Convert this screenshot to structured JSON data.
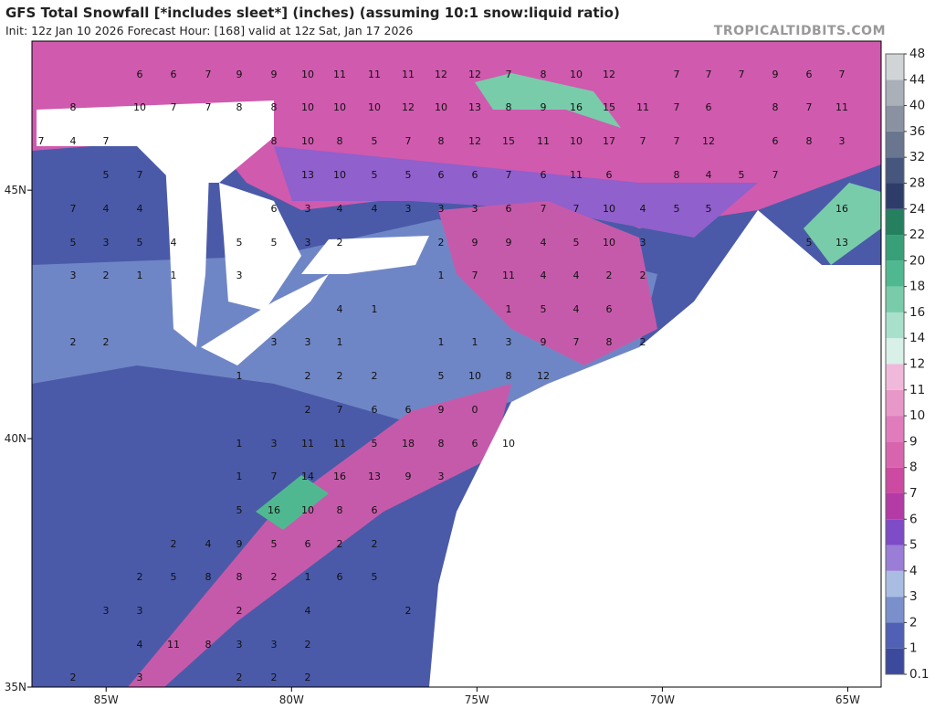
{
  "header": {
    "title": "GFS Total Snowfall [*includes sleet*] (inches) (assuming 10:1 snow:liquid ratio)",
    "subtitle": "Init: 12z Jan 10 2026   Forecast Hour: [168]   valid at 12z Sat, Jan 17 2026",
    "credit": "TROPICALTIDBITS.COM"
  },
  "map": {
    "xlim": [
      -87,
      -64.1
    ],
    "ylim": [
      35,
      48
    ],
    "xticks": [
      {
        "value": -85,
        "label": "85W"
      },
      {
        "value": -80,
        "label": "80W"
      },
      {
        "value": -75,
        "label": "75W"
      },
      {
        "value": -70,
        "label": "70W"
      },
      {
        "value": -65,
        "label": "65W"
      }
    ],
    "yticks": [
      {
        "value": 35,
        "label": "35N"
      },
      {
        "value": 40,
        "label": "40N"
      },
      {
        "value": 45,
        "label": "45N"
      }
    ],
    "grid_labels": [
      [
        6,
        6,
        7,
        9,
        9,
        10,
        11,
        11,
        11,
        12,
        12,
        7,
        8,
        10,
        12,
        7,
        7,
        7,
        9,
        6,
        7
      ],
      [
        8,
        10,
        7,
        7,
        8,
        8,
        10,
        10,
        10,
        12,
        10,
        13,
        8,
        9,
        16,
        15,
        11,
        7,
        6,
        8,
        7,
        11
      ],
      [
        7,
        4,
        7,
        8,
        10,
        8,
        5,
        7,
        8,
        12,
        15,
        11,
        10,
        17,
        7,
        7,
        12,
        6,
        8,
        3
      ],
      [
        5,
        7,
        13,
        10,
        5,
        5,
        6,
        6,
        7,
        6,
        11,
        6,
        8,
        4,
        5,
        7
      ],
      [
        7,
        4,
        4,
        6,
        3,
        4,
        4,
        3,
        3,
        3,
        6,
        7,
        7,
        10,
        4,
        5,
        5,
        16
      ],
      [
        5,
        3,
        5,
        4,
        5,
        5,
        3,
        2,
        2,
        9,
        9,
        4,
        5,
        10,
        3,
        5,
        13
      ],
      [
        3,
        2,
        1,
        1,
        3,
        1,
        7,
        11,
        4,
        4,
        2,
        2
      ],
      [
        4,
        1,
        1,
        5,
        4,
        6
      ],
      [
        2,
        2,
        3,
        3,
        1,
        1,
        1,
        3,
        9,
        7,
        8,
        2
      ],
      [
        1,
        2,
        2,
        2,
        5,
        10,
        8,
        12
      ],
      [
        2,
        7,
        6,
        6,
        9,
        0
      ],
      [
        1,
        3,
        11,
        11,
        5,
        18,
        8,
        6,
        10
      ],
      [
        1,
        7,
        14,
        16,
        13,
        9,
        3
      ],
      [
        5,
        16,
        10,
        8,
        6
      ],
      [
        2,
        4,
        9,
        5,
        6,
        2,
        2
      ],
      [
        2,
        5,
        8,
        8,
        2,
        1,
        6,
        5
      ],
      [
        3,
        3,
        2,
        4,
        2
      ],
      [
        4,
        11,
        8,
        3,
        3,
        2
      ],
      [
        2,
        3,
        2,
        2,
        2
      ]
    ]
  },
  "colorbar": {
    "levels": [
      0.1,
      1,
      2,
      3,
      4,
      5,
      6,
      7,
      8,
      9,
      10,
      11,
      12,
      14,
      16,
      18,
      20,
      22,
      24,
      28,
      32,
      36,
      40,
      44,
      48
    ],
    "colors": [
      "#3b4a9c",
      "#5060b4",
      "#7a90cc",
      "#a9bde2",
      "#9a7dd6",
      "#7f4cc8",
      "#b43aa6",
      "#cc4aa2",
      "#d864ae",
      "#e07cbc",
      "#e898c8",
      "#f0b8da",
      "#d8f0e8",
      "#a8e0cc",
      "#78ccaa",
      "#50b890",
      "#38a078",
      "#258060",
      "#2e3c6a",
      "#46567e",
      "#6a7690",
      "#8a92a2",
      "#aab0b8",
      "#d0d4d6"
    ]
  }
}
